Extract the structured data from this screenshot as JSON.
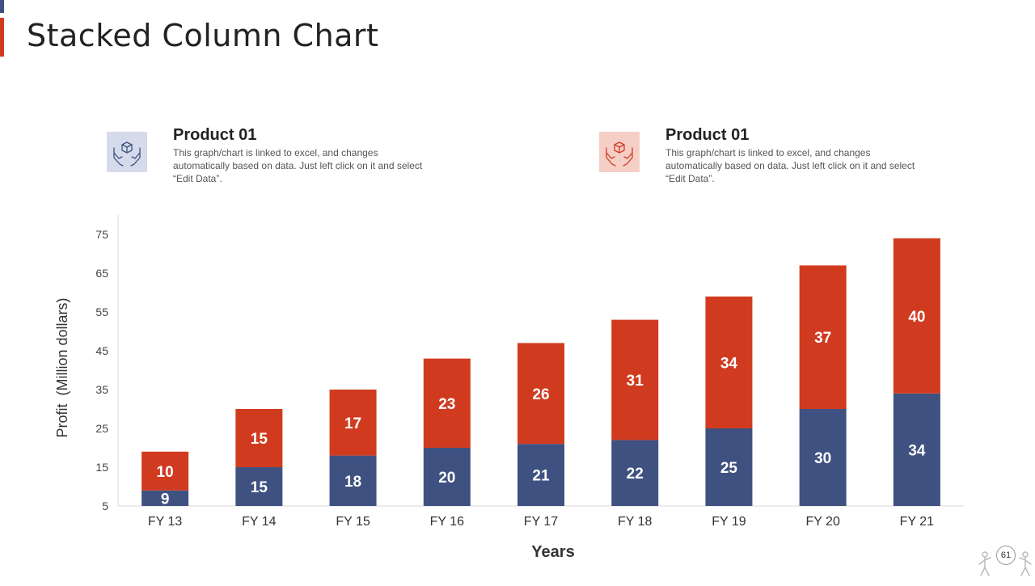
{
  "slide": {
    "title": "Stacked Column Chart",
    "page_number": "61"
  },
  "legend": [
    {
      "title": "Product 01",
      "description": "This graph/chart is linked to excel, and changes automatically based on data. Just left click on it and select “Edit Data”.",
      "color": "#3f5180",
      "icon": "hands-box-icon"
    },
    {
      "title": "Product 01",
      "description": "This graph/chart is linked to excel, and changes automatically based on data. Just left click on it and select “Edit Data”.",
      "color": "#d03b20",
      "icon": "hands-box-icon"
    }
  ],
  "chart_data": {
    "type": "bar",
    "stacked": true,
    "title": "",
    "xlabel": "Years",
    "ylabel": "Profit  (Million dollars)",
    "categories": [
      "FY 13",
      "FY 14",
      "FY 15",
      "FY 16",
      "FY 17",
      "FY 18",
      "FY 19",
      "FY 20",
      "FY 21"
    ],
    "series": [
      {
        "name": "Product 01",
        "color": "#3f5180",
        "values": [
          9,
          15,
          18,
          20,
          21,
          22,
          25,
          30,
          34
        ]
      },
      {
        "name": "Product 01",
        "color": "#d03b20",
        "values": [
          10,
          15,
          17,
          23,
          26,
          31,
          34,
          37,
          40
        ]
      }
    ],
    "yticks": [
      5,
      15,
      25,
      35,
      45,
      55,
      65,
      75
    ],
    "ylim": [
      5,
      80
    ],
    "grid": false
  }
}
